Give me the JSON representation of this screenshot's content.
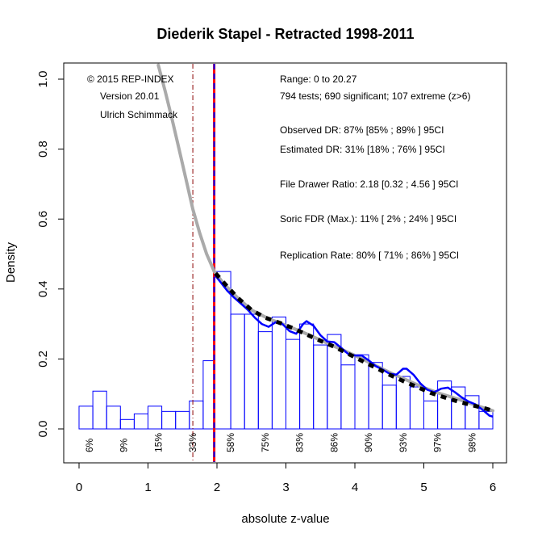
{
  "chart_data": {
    "type": "histogram",
    "title": "Diederik Stapel - Retracted  1998-2011",
    "xlabel": "absolute z-value",
    "ylabel": "Density",
    "xlim": [
      -0.1,
      6.1
    ],
    "ylim": [
      -0.1,
      1.04
    ],
    "x_ticks": [
      "0",
      "1",
      "2",
      "3",
      "4",
      "5",
      "6"
    ],
    "y_ticks": [
      "0.0",
      "0.2",
      "0.4",
      "0.6",
      "0.8",
      "1.0"
    ],
    "bin_width": 0.2,
    "bins_nonsig": [
      {
        "x0": 0.0,
        "x1": 0.2,
        "density": 0.065
      },
      {
        "x0": 0.2,
        "x1": 0.4,
        "density": 0.108
      },
      {
        "x0": 0.4,
        "x1": 0.6,
        "density": 0.065
      },
      {
        "x0": 0.6,
        "x1": 0.8,
        "density": 0.027
      },
      {
        "x0": 0.8,
        "x1": 1.0,
        "density": 0.043
      },
      {
        "x0": 1.0,
        "x1": 1.2,
        "density": 0.065
      },
      {
        "x0": 1.2,
        "x1": 1.4,
        "density": 0.05
      },
      {
        "x0": 1.4,
        "x1": 1.6,
        "density": 0.05
      },
      {
        "x0": 1.6,
        "x1": 1.8,
        "density": 0.08
      },
      {
        "x0": 1.8,
        "x1": 1.96,
        "density": 0.195
      }
    ],
    "bins_sig": [
      {
        "x0": 1.96,
        "x1": 2.2,
        "density": 0.45
      },
      {
        "x0": 2.2,
        "x1": 2.4,
        "density": 0.328
      },
      {
        "x0": 2.4,
        "x1": 2.6,
        "density": 0.328
      },
      {
        "x0": 2.6,
        "x1": 2.8,
        "density": 0.278
      },
      {
        "x0": 2.8,
        "x1": 3.0,
        "density": 0.32
      },
      {
        "x0": 3.0,
        "x1": 3.2,
        "density": 0.256
      },
      {
        "x0": 3.2,
        "x1": 3.4,
        "density": 0.3
      },
      {
        "x0": 3.4,
        "x1": 3.6,
        "density": 0.24
      },
      {
        "x0": 3.6,
        "x1": 3.8,
        "density": 0.27
      },
      {
        "x0": 3.8,
        "x1": 4.0,
        "density": 0.183
      },
      {
        "x0": 4.0,
        "x1": 4.2,
        "density": 0.212
      },
      {
        "x0": 4.2,
        "x1": 4.4,
        "density": 0.19
      },
      {
        "x0": 4.4,
        "x1": 4.6,
        "density": 0.125
      },
      {
        "x0": 4.6,
        "x1": 4.8,
        "density": 0.15
      },
      {
        "x0": 4.8,
        "x1": 5.0,
        "density": 0.12
      },
      {
        "x0": 5.0,
        "x1": 5.2,
        "density": 0.08
      },
      {
        "x0": 5.2,
        "x1": 5.4,
        "density": 0.137
      },
      {
        "x0": 5.4,
        "x1": 5.6,
        "density": 0.12
      },
      {
        "x0": 5.6,
        "x1": 5.8,
        "density": 0.095
      },
      {
        "x0": 5.8,
        "x1": 6.0,
        "density": 0.05
      }
    ],
    "vertical_lines": [
      {
        "name": "significance-threshold",
        "x": 1.96,
        "color": "#ff0000",
        "style": "solid"
      },
      {
        "name": "selection-threshold",
        "x": 1.96,
        "color": "#0000ff",
        "style": "dashed"
      },
      {
        "name": "marginal-threshold",
        "x": 1.65,
        "color": "#8b0000",
        "style": "dashdot"
      }
    ],
    "gray_curve": [
      [
        1.15,
        1.04
      ],
      [
        1.25,
        0.965
      ],
      [
        1.35,
        0.885
      ],
      [
        1.45,
        0.8
      ],
      [
        1.55,
        0.715
      ],
      [
        1.65,
        0.628
      ],
      [
        1.75,
        0.56
      ],
      [
        1.85,
        0.5
      ],
      [
        1.96,
        0.45
      ],
      [
        2.1,
        0.415
      ],
      [
        2.3,
        0.375
      ],
      [
        2.5,
        0.34
      ],
      [
        2.75,
        0.315
      ],
      [
        3.0,
        0.296
      ],
      [
        3.25,
        0.276
      ],
      [
        3.5,
        0.254
      ],
      [
        3.75,
        0.232
      ],
      [
        4.0,
        0.21
      ],
      [
        4.25,
        0.186
      ],
      [
        4.5,
        0.162
      ],
      [
        4.75,
        0.14
      ],
      [
        5.0,
        0.118
      ],
      [
        5.25,
        0.1
      ],
      [
        5.5,
        0.085
      ],
      [
        5.75,
        0.068
      ],
      [
        6.0,
        0.052
      ]
    ],
    "fitted_curve": [
      [
        1.98,
        0.445
      ],
      [
        2.1,
        0.418
      ],
      [
        2.3,
        0.375
      ],
      [
        2.5,
        0.34
      ],
      [
        2.7,
        0.318
      ],
      [
        2.9,
        0.304
      ],
      [
        3.1,
        0.288
      ],
      [
        3.3,
        0.27
      ],
      [
        3.5,
        0.252
      ],
      [
        3.7,
        0.235
      ],
      [
        3.9,
        0.215
      ],
      [
        4.1,
        0.195
      ],
      [
        4.3,
        0.175
      ],
      [
        4.5,
        0.155
      ],
      [
        4.7,
        0.137
      ],
      [
        4.9,
        0.12
      ],
      [
        5.1,
        0.103
      ],
      [
        5.3,
        0.09
      ],
      [
        5.5,
        0.078
      ],
      [
        5.7,
        0.068
      ],
      [
        5.9,
        0.058
      ],
      [
        6.0,
        0.052
      ]
    ],
    "kernel_density": [
      [
        1.97,
        0.44
      ],
      [
        2.05,
        0.42
      ],
      [
        2.15,
        0.395
      ],
      [
        2.25,
        0.375
      ],
      [
        2.35,
        0.358
      ],
      [
        2.45,
        0.34
      ],
      [
        2.55,
        0.318
      ],
      [
        2.65,
        0.3
      ],
      [
        2.75,
        0.292
      ],
      [
        2.85,
        0.305
      ],
      [
        2.95,
        0.3
      ],
      [
        3.05,
        0.28
      ],
      [
        3.15,
        0.272
      ],
      [
        3.25,
        0.3
      ],
      [
        3.3,
        0.308
      ],
      [
        3.4,
        0.295
      ],
      [
        3.5,
        0.268
      ],
      [
        3.6,
        0.25
      ],
      [
        3.7,
        0.248
      ],
      [
        3.8,
        0.232
      ],
      [
        3.9,
        0.215
      ],
      [
        4.0,
        0.21
      ],
      [
        4.1,
        0.21
      ],
      [
        4.2,
        0.196
      ],
      [
        4.3,
        0.18
      ],
      [
        4.4,
        0.17
      ],
      [
        4.5,
        0.158
      ],
      [
        4.6,
        0.155
      ],
      [
        4.7,
        0.172
      ],
      [
        4.75,
        0.172
      ],
      [
        4.85,
        0.155
      ],
      [
        4.95,
        0.13
      ],
      [
        5.05,
        0.112
      ],
      [
        5.15,
        0.105
      ],
      [
        5.25,
        0.115
      ],
      [
        5.35,
        0.118
      ],
      [
        5.45,
        0.105
      ],
      [
        5.55,
        0.09
      ],
      [
        5.65,
        0.078
      ],
      [
        5.75,
        0.07
      ],
      [
        5.85,
        0.055
      ],
      [
        5.95,
        0.038
      ],
      [
        6.0,
        0.035
      ]
    ],
    "power_labels": [
      {
        "x": 0.15,
        "label": "6%"
      },
      {
        "x": 0.65,
        "label": "9%"
      },
      {
        "x": 1.15,
        "label": "15%"
      },
      {
        "x": 1.65,
        "label": "33%"
      },
      {
        "x": 2.2,
        "label": "58%"
      },
      {
        "x": 2.7,
        "label": "75%"
      },
      {
        "x": 3.2,
        "label": "83%"
      },
      {
        "x": 3.7,
        "label": "86%"
      },
      {
        "x": 4.2,
        "label": "90%"
      },
      {
        "x": 4.7,
        "label": "93%"
      },
      {
        "x": 5.2,
        "label": "97%"
      },
      {
        "x": 5.7,
        "label": "98%"
      }
    ],
    "annotations_left": [
      "© 2015 REP-INDEX",
      "Version 20.01",
      "Ulrich Schimmack"
    ],
    "annotations_right": [
      "Range: 0 to 20.27",
      "794 tests; 690 significant; 107 extreme (z>6)",
      "Observed DR: 87% [85% ; 89% ] 95CI",
      "Estimated DR: 31% [18% ; 76% ] 95CI",
      "File Drawer Ratio: 2.18 [0.32 ; 4.56 ] 95CI",
      "Soric FDR (Max.): 11% [ 2% ; 24% ] 95CI",
      "Replication Rate: 80% [ 71% ; 86% ] 95CI"
    ],
    "colors": {
      "bars": "#0000ff",
      "gray_curve": "#aaaaaa",
      "fitted_curve": "#000000",
      "kernel_density": "#0000ff"
    }
  }
}
